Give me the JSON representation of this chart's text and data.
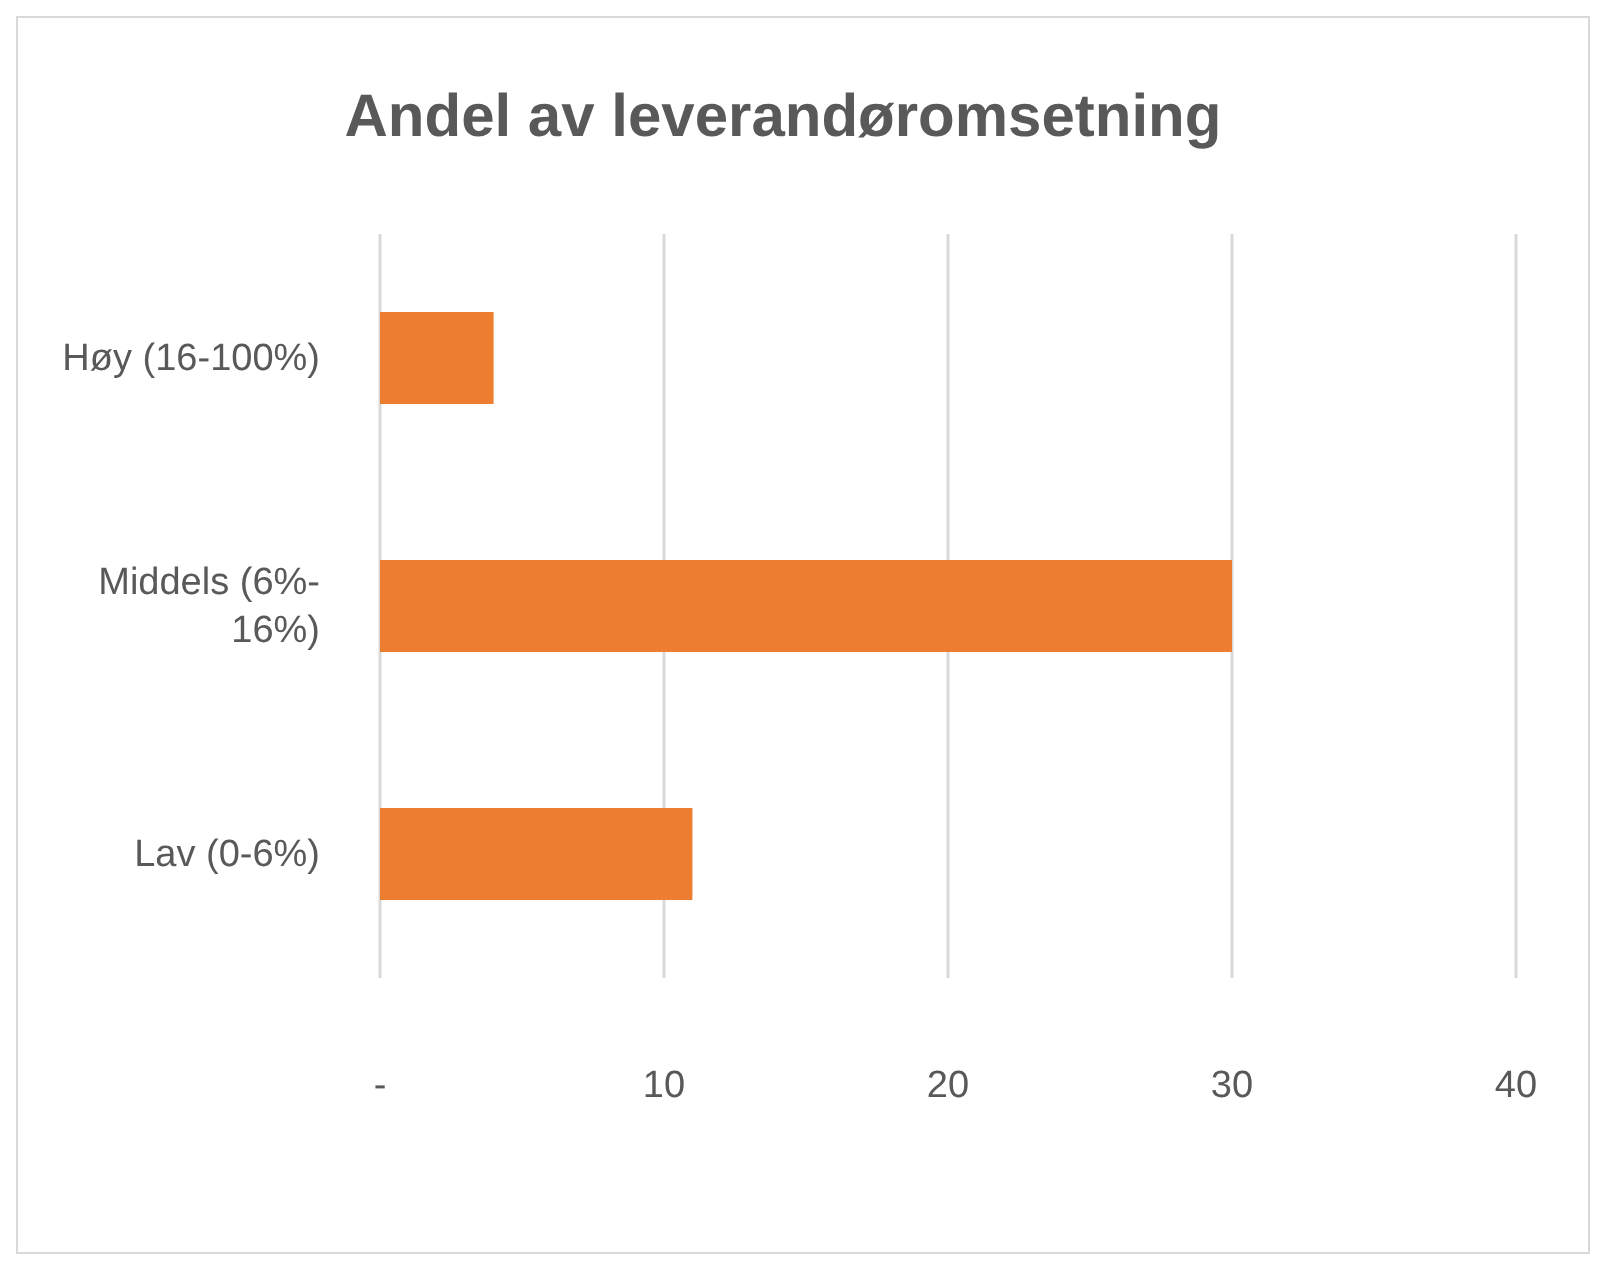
{
  "chart_data": {
    "type": "bar",
    "orientation": "horizontal",
    "title": "Andel av leverandøromsetning",
    "categories": [
      "Høy (16-100%)",
      "Middels (6%-16%)",
      "Lav (0-6%)"
    ],
    "values": [
      4,
      30,
      11
    ],
    "color": "#ed7d31",
    "xlim": [
      0,
      40
    ],
    "xticks": [
      {
        "value": 0,
        "label": "-"
      },
      10,
      20,
      30,
      40
    ],
    "grid": "x"
  }
}
